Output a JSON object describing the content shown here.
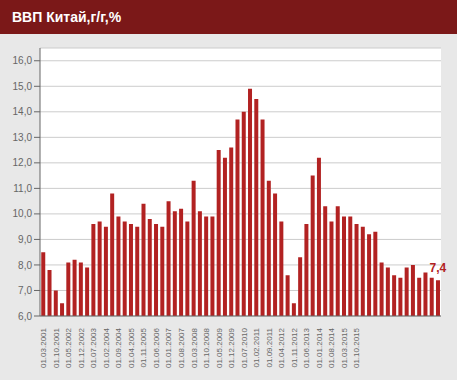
{
  "chart_data": {
    "type": "bar",
    "title": "ВВП Китай,г/г,%",
    "categories": [
      "01.03.2001",
      null,
      "01.10.2001",
      null,
      "01.05.2002",
      null,
      "01.12.2002",
      null,
      "01.07.2003",
      null,
      "01.02.2004",
      null,
      "01.09.2004",
      null,
      "01.04.2005",
      null,
      "01.11.2005",
      null,
      "01.06.2006",
      null,
      "01.01.2007",
      null,
      "01.08.2007",
      null,
      "01.03.2008",
      null,
      "01.10.2008",
      null,
      "01.05.2009",
      null,
      "01.12.2009",
      null,
      "01.07.2010",
      null,
      "01.02.2011",
      null,
      "01.09.2011",
      null,
      "01.04.2012",
      null,
      "01.11.2012",
      null,
      "01.06.2013",
      null,
      "01.01.2014",
      null,
      "01.08.2014",
      null,
      "01.03.2015",
      null,
      "01.10.2015",
      null,
      null,
      null,
      null,
      null,
      null,
      null,
      null,
      null,
      null,
      null,
      null,
      null
    ],
    "values": [
      8.5,
      7.8,
      7.0,
      6.5,
      8.1,
      8.2,
      8.1,
      7.9,
      9.6,
      9.7,
      9.5,
      10.8,
      9.9,
      9.7,
      9.6,
      9.5,
      10.4,
      9.8,
      9.6,
      9.5,
      10.5,
      10.1,
      10.2,
      9.7,
      11.3,
      10.1,
      9.9,
      9.9,
      12.5,
      12.2,
      12.6,
      13.7,
      14.0,
      14.9,
      14.5,
      13.7,
      11.3,
      10.8,
      9.7,
      7.6,
      6.5,
      8.3,
      9.6,
      11.5,
      12.2,
      10.3,
      9.7,
      10.3,
      9.9,
      9.9,
      9.6,
      9.5,
      9.2,
      9.3,
      8.1,
      7.9,
      7.6,
      7.5,
      7.9,
      8.0,
      7.5,
      7.7,
      7.5,
      7.4
    ],
    "color": "#B22222",
    "ylim": [
      6.0,
      16.5
    ],
    "yticks": [
      {
        "value": 6.0,
        "label": "6,0"
      },
      {
        "value": 7.0,
        "label": "7,0"
      },
      {
        "value": 8.0,
        "label": "8,0"
      },
      {
        "value": 9.0,
        "label": "9,0"
      },
      {
        "value": 10.0,
        "label": "10,0"
      },
      {
        "value": 11.0,
        "label": "11,0"
      },
      {
        "value": 12.0,
        "label": "12,0"
      },
      {
        "value": 13.0,
        "label": "13,0"
      },
      {
        "value": 14.0,
        "label": "14,0"
      },
      {
        "value": 15.0,
        "label": "15,0"
      },
      {
        "value": 16.0,
        "label": "16,0"
      }
    ],
    "grid": true,
    "annotation": "7,4"
  }
}
